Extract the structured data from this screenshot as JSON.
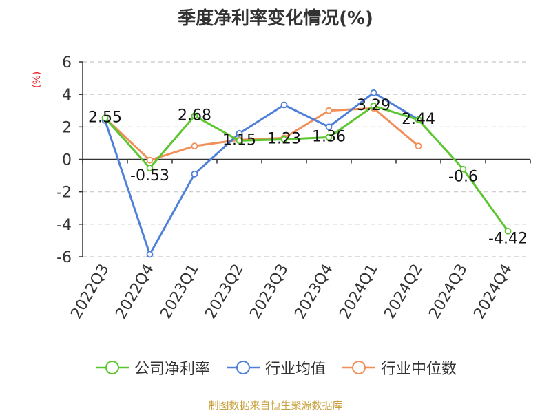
{
  "chart_data": {
    "type": "line",
    "title": "季度净利率变化情况(%)",
    "ylabel": "(%)",
    "xlabel": "",
    "categories": [
      "2022Q3",
      "2022Q4",
      "2023Q1",
      "2023Q2",
      "2023Q3",
      "2023Q4",
      "2024Q1",
      "2024Q2",
      "2024Q3",
      "2024Q4"
    ],
    "ylim": [
      -6,
      6
    ],
    "yticks": [
      6,
      4,
      2,
      0,
      -2,
      -4,
      -6
    ],
    "grid": true,
    "legend_position": "bottom",
    "series": [
      {
        "name": "公司净利率",
        "color": "#5bc62f",
        "values": [
          2.55,
          -0.53,
          2.68,
          1.15,
          1.23,
          1.36,
          3.29,
          2.44,
          -0.6,
          -4.42
        ],
        "labels": [
          "2.55",
          "-0.53",
          "2.68",
          "1.15",
          "1.23",
          "1.36",
          "3.29",
          "2.44",
          "-0.6",
          "-4.42"
        ]
      },
      {
        "name": "行业均值",
        "color": "#4f80d9",
        "values": [
          2.4,
          -5.85,
          -0.9,
          1.6,
          3.35,
          2.0,
          4.1,
          2.45,
          null,
          null
        ]
      },
      {
        "name": "行业中位数",
        "color": "#f28e58",
        "values": [
          2.55,
          -0.05,
          0.82,
          1.2,
          1.32,
          3.0,
          3.15,
          0.82,
          null,
          null
        ]
      }
    ]
  },
  "source_note": "制图数据来自恒生聚源数据库"
}
